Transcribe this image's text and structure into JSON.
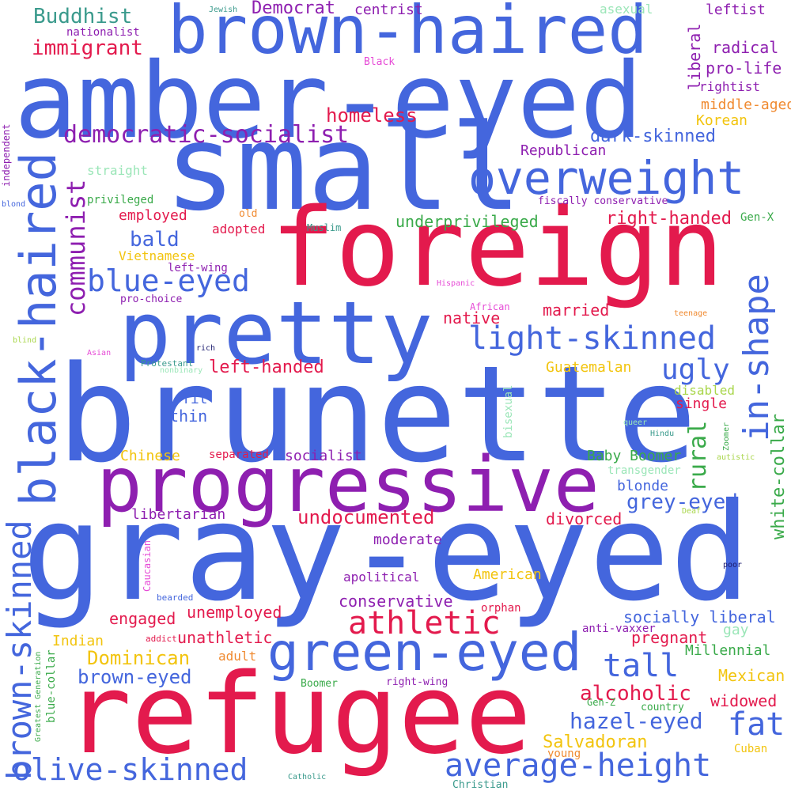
{
  "palette": {
    "blue": "#4466dd",
    "red": "#e31a4d",
    "purple": "#8e1fb0",
    "teal": "#3a9a8c",
    "green": "#3aaa4a",
    "yellow": "#f2c40e",
    "orange": "#f08a30",
    "pink": "#e64bd6",
    "lime": "#a9d64b",
    "mint": "#9be6b8",
    "navy": "#1a1a6e",
    "background": "#ffffff"
  },
  "words": [
    {
      "id": "amber-eyed",
      "text": "amber-eyed",
      "color": "blue"
    },
    {
      "id": "brown-haired",
      "text": "brown-haired",
      "color": "blue"
    },
    {
      "id": "small",
      "text": "small",
      "color": "blue"
    },
    {
      "id": "foreign",
      "text": "foreign",
      "color": "red"
    },
    {
      "id": "pretty",
      "text": "pretty",
      "color": "blue"
    },
    {
      "id": "brunette",
      "text": "brunette",
      "color": "blue"
    },
    {
      "id": "progressive",
      "text": "progressive",
      "color": "purple"
    },
    {
      "id": "gray-eyed",
      "text": "gray-eyed",
      "color": "blue"
    },
    {
      "id": "refugee",
      "text": "refugee",
      "color": "red"
    },
    {
      "id": "green-eyed",
      "text": "green-eyed",
      "color": "blue"
    },
    {
      "id": "overweight",
      "text": "overweight",
      "color": "blue"
    },
    {
      "id": "black-haired",
      "text": "black-haired",
      "color": "blue"
    },
    {
      "id": "brown-skinned",
      "text": "brown-skinned",
      "color": "blue"
    },
    {
      "id": "in-shape",
      "text": "in-shape",
      "color": "blue"
    },
    {
      "id": "olive-skinned",
      "text": "olive-skinned",
      "color": "blue"
    },
    {
      "id": "average-height",
      "text": "average-height",
      "color": "blue"
    },
    {
      "id": "athletic",
      "text": "athletic",
      "color": "red"
    },
    {
      "id": "light-skinned",
      "text": "light-skinned",
      "color": "blue"
    },
    {
      "id": "blue-eyed",
      "text": "blue-eyed",
      "color": "blue"
    },
    {
      "id": "democratic-socialist",
      "text": "democratic-socialist",
      "color": "purple"
    },
    {
      "id": "communist",
      "text": "communist",
      "color": "purple"
    },
    {
      "id": "ugly",
      "text": "ugly",
      "color": "blue"
    },
    {
      "id": "tall",
      "text": "tall",
      "color": "blue"
    },
    {
      "id": "fat",
      "text": "fat",
      "color": "blue"
    },
    {
      "id": "immigrant",
      "text": "immigrant",
      "color": "red"
    },
    {
      "id": "buddhist",
      "text": "Buddhist",
      "color": "teal"
    },
    {
      "id": "democrat",
      "text": "Democrat",
      "color": "purple"
    },
    {
      "id": "centrist",
      "text": "centrist",
      "color": "purple"
    },
    {
      "id": "homeless",
      "text": "homeless",
      "color": "red"
    },
    {
      "id": "dark-skinned",
      "text": "dark-skinned",
      "color": "blue"
    },
    {
      "id": "rural",
      "text": "rural",
      "color": "green"
    },
    {
      "id": "undocumented",
      "text": "undocumented",
      "color": "red"
    },
    {
      "id": "grey-eyed",
      "text": "grey-eyed",
      "color": "blue"
    },
    {
      "id": "hazel-eyed",
      "text": "hazel-eyed",
      "color": "blue"
    },
    {
      "id": "alcoholic",
      "text": "alcoholic",
      "color": "red"
    },
    {
      "id": "salvadoran",
      "text": "Salvadoran",
      "color": "yellow"
    },
    {
      "id": "dominican",
      "text": "Dominican",
      "color": "yellow"
    },
    {
      "id": "brown-eyed",
      "text": "brown-eyed",
      "color": "blue"
    },
    {
      "id": "left-handed",
      "text": "left-handed",
      "color": "red"
    },
    {
      "id": "bald",
      "text": "bald",
      "color": "blue"
    },
    {
      "id": "right-handed",
      "text": "right-handed",
      "color": "red"
    },
    {
      "id": "underprivileged",
      "text": "underprivileged",
      "color": "green"
    },
    {
      "id": "conservative",
      "text": "conservative",
      "color": "purple"
    },
    {
      "id": "socially-liberal",
      "text": "socially liberal",
      "color": "blue"
    },
    {
      "id": "white-collar",
      "text": "white-collar",
      "color": "green"
    },
    {
      "id": "leftist",
      "text": "leftist",
      "color": "purple"
    },
    {
      "id": "radical",
      "text": "radical",
      "color": "purple"
    },
    {
      "id": "pro-life",
      "text": "pro-life",
      "color": "purple"
    },
    {
      "id": "rightist",
      "text": "rightist",
      "color": "purple"
    },
    {
      "id": "middle-aged",
      "text": "middle-aged",
      "color": "orange"
    },
    {
      "id": "korean",
      "text": "Korean",
      "color": "yellow"
    },
    {
      "id": "republican",
      "text": "Republican",
      "color": "purple"
    },
    {
      "id": "liberal",
      "text": "liberal",
      "color": "purple"
    },
    {
      "id": "asexual",
      "text": "asexual",
      "color": "mint"
    },
    {
      "id": "nationalist",
      "text": "nationalist",
      "color": "purple"
    },
    {
      "id": "jewish",
      "text": "Jewish",
      "color": "teal"
    },
    {
      "id": "black",
      "text": "Black",
      "color": "pink"
    },
    {
      "id": "independent",
      "text": "independent",
      "color": "purple"
    },
    {
      "id": "blond",
      "text": "blond",
      "color": "blue"
    },
    {
      "id": "straight",
      "text": "straight",
      "color": "mint"
    },
    {
      "id": "privileged",
      "text": "privileged",
      "color": "green"
    },
    {
      "id": "employed",
      "text": "employed",
      "color": "red"
    },
    {
      "id": "old",
      "text": "old",
      "color": "orange"
    },
    {
      "id": "adopted",
      "text": "adopted",
      "color": "red"
    },
    {
      "id": "muslim",
      "text": "Muslim",
      "color": "teal"
    },
    {
      "id": "vietnamese",
      "text": "Vietnamese",
      "color": "yellow"
    },
    {
      "id": "left-wing",
      "text": "left-wing",
      "color": "purple"
    },
    {
      "id": "pro-choice",
      "text": "pro-choice",
      "color": "purple"
    },
    {
      "id": "fiscally-conservative",
      "text": "fiscally conservative",
      "color": "purple"
    },
    {
      "id": "gen-x",
      "text": "Gen-X",
      "color": "green"
    },
    {
      "id": "hispanic",
      "text": "Hispanic",
      "color": "pink"
    },
    {
      "id": "married",
      "text": "married",
      "color": "red"
    },
    {
      "id": "native",
      "text": "native",
      "color": "red"
    },
    {
      "id": "african",
      "text": "African",
      "color": "pink"
    },
    {
      "id": "teenage",
      "text": "teenage",
      "color": "orange"
    },
    {
      "id": "blind",
      "text": "blind",
      "color": "lime"
    },
    {
      "id": "asian",
      "text": "Asian",
      "color": "pink"
    },
    {
      "id": "rich",
      "text": "rich",
      "color": "navy"
    },
    {
      "id": "protestant",
      "text": "Protestant",
      "color": "teal"
    },
    {
      "id": "nonbinary",
      "text": "nonbinary",
      "color": "mint"
    },
    {
      "id": "guatemalan",
      "text": "Guatemalan",
      "color": "yellow"
    },
    {
      "id": "bisexual",
      "text": "bisexual",
      "color": "mint"
    },
    {
      "id": "disabled",
      "text": "disabled",
      "color": "lime"
    },
    {
      "id": "single",
      "text": "single",
      "color": "red"
    },
    {
      "id": "fit",
      "text": "fit",
      "color": "blue"
    },
    {
      "id": "thin",
      "text": "thin",
      "color": "blue"
    },
    {
      "id": "queer",
      "text": "queer",
      "color": "mint"
    },
    {
      "id": "hindu",
      "text": "Hindu",
      "color": "teal"
    },
    {
      "id": "zoomer",
      "text": "Zoomer",
      "color": "green"
    },
    {
      "id": "autistic",
      "text": "autistic",
      "color": "lime"
    },
    {
      "id": "chinese",
      "text": "Chinese",
      "color": "yellow"
    },
    {
      "id": "separated",
      "text": "separated",
      "color": "red"
    },
    {
      "id": "socialist",
      "text": "socialist",
      "color": "purple"
    },
    {
      "id": "baby-boomer",
      "text": "Baby Boomer",
      "color": "green"
    },
    {
      "id": "transgender",
      "text": "transgender",
      "color": "mint"
    },
    {
      "id": "blonde",
      "text": "blonde",
      "color": "blue"
    },
    {
      "id": "libertarian",
      "text": "libertarian",
      "color": "purple"
    },
    {
      "id": "divorced",
      "text": "divorced",
      "color": "red"
    },
    {
      "id": "deaf",
      "text": "Deaf",
      "color": "lime"
    },
    {
      "id": "moderate",
      "text": "moderate",
      "color": "purple"
    },
    {
      "id": "caucasian",
      "text": "Caucasian",
      "color": "pink"
    },
    {
      "id": "apolitical",
      "text": "apolitical",
      "color": "purple"
    },
    {
      "id": "american",
      "text": "American",
      "color": "yellow"
    },
    {
      "id": "poor",
      "text": "poor",
      "color": "navy"
    },
    {
      "id": "bearded",
      "text": "bearded",
      "color": "blue"
    },
    {
      "id": "engaged",
      "text": "engaged",
      "color": "red"
    },
    {
      "id": "unemployed",
      "text": "unemployed",
      "color": "red"
    },
    {
      "id": "orphan",
      "text": "orphan",
      "color": "red"
    },
    {
      "id": "anti-vaxxer",
      "text": "anti-vaxxer",
      "color": "purple"
    },
    {
      "id": "gay",
      "text": "gay",
      "color": "mint"
    },
    {
      "id": "pregnant",
      "text": "pregnant",
      "color": "red"
    },
    {
      "id": "indian",
      "text": "Indian",
      "color": "yellow"
    },
    {
      "id": "addict",
      "text": "addict",
      "color": "red"
    },
    {
      "id": "unathletic",
      "text": "unathletic",
      "color": "red"
    },
    {
      "id": "adult",
      "text": "adult",
      "color": "orange"
    },
    {
      "id": "millennial",
      "text": "Millennial",
      "color": "green"
    },
    {
      "id": "greatest-generation",
      "text": "Greatest Generation",
      "color": "green"
    },
    {
      "id": "blue-collar",
      "text": "blue-collar",
      "color": "green"
    },
    {
      "id": "boomer",
      "text": "Boomer",
      "color": "green"
    },
    {
      "id": "right-wing",
      "text": "right-wing",
      "color": "purple"
    },
    {
      "id": "mexican",
      "text": "Mexican",
      "color": "yellow"
    },
    {
      "id": "widowed",
      "text": "widowed",
      "color": "red"
    },
    {
      "id": "gen-z",
      "text": "Gen-Z",
      "color": "green"
    },
    {
      "id": "country",
      "text": "country",
      "color": "green"
    },
    {
      "id": "cuban",
      "text": "Cuban",
      "color": "yellow"
    },
    {
      "id": "young",
      "text": "young",
      "color": "orange"
    },
    {
      "id": "catholic",
      "text": "Catholic",
      "color": "teal"
    },
    {
      "id": "christian",
      "text": "Christian",
      "color": "teal"
    }
  ]
}
